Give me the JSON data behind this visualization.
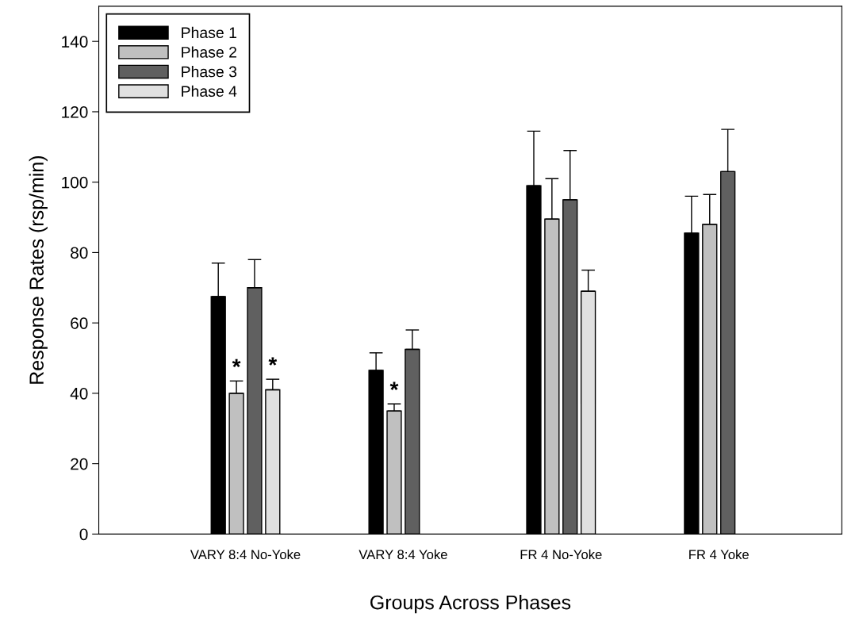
{
  "chart_data": {
    "type": "bar",
    "xlabel": "Groups Across Phases",
    "ylabel": "Response Rates (rsp/min)",
    "categories": [
      "VARY 8:4 No-Yoke",
      "VARY 8:4 Yoke",
      "FR 4 No-Yoke",
      "FR 4 Yoke"
    ],
    "series": [
      {
        "name": "Phase 1",
        "color": "#000000",
        "values": [
          67.5,
          46.5,
          99,
          85.5
        ],
        "errors": [
          9.5,
          5,
          15.5,
          10.5
        ]
      },
      {
        "name": "Phase 2",
        "color": "#c0c0c0",
        "values": [
          40,
          35,
          89.5,
          88
        ],
        "errors": [
          3.5,
          2,
          11.5,
          8.5
        ],
        "value_labels": [
          "*",
          "*",
          null,
          null
        ]
      },
      {
        "name": "Phase 3",
        "color": "#606060",
        "values": [
          70,
          52.5,
          95,
          103
        ],
        "errors": [
          8,
          5.5,
          14,
          12
        ]
      },
      {
        "name": "Phase 4",
        "color": "#e0e0e0",
        "values": [
          41,
          null,
          69,
          null
        ],
        "errors": [
          3,
          null,
          6,
          null
        ],
        "value_labels": [
          "*",
          null,
          null,
          null
        ]
      }
    ],
    "ylim": [
      0,
      150
    ],
    "yticks": [
      0,
      20,
      40,
      60,
      80,
      100,
      120,
      140
    ],
    "legend": "top left",
    "grid": false
  }
}
